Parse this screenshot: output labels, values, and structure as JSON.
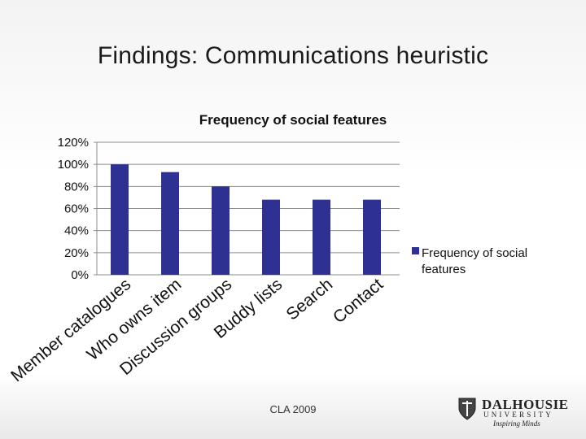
{
  "slide": {
    "title": "Findings: Communications heuristic",
    "footer": "CLA 2009"
  },
  "logo": {
    "name": "DALHOUSIE",
    "subname": "UNIVERSITY",
    "tagline": "Inspiring Minds",
    "shield_icon": "crest-shield-icon"
  },
  "colors": {
    "bar": "#2e3192",
    "grid": "#8c8c8c"
  },
  "chart_data": {
    "type": "bar",
    "title": "Frequency of social features",
    "categories": [
      "Member catalogues",
      "Who owns item",
      "Discussion groups",
      "Buddy lists",
      "Search",
      "Contact"
    ],
    "series": [
      {
        "name": "Frequency of social features",
        "values": [
          100,
          93,
          80,
          68,
          68,
          68
        ]
      }
    ],
    "y_ticks": [
      "0%",
      "20%",
      "40%",
      "60%",
      "80%",
      "100%",
      "120%"
    ],
    "ylim": [
      0,
      120
    ],
    "grid": true,
    "legend_position": "right"
  }
}
